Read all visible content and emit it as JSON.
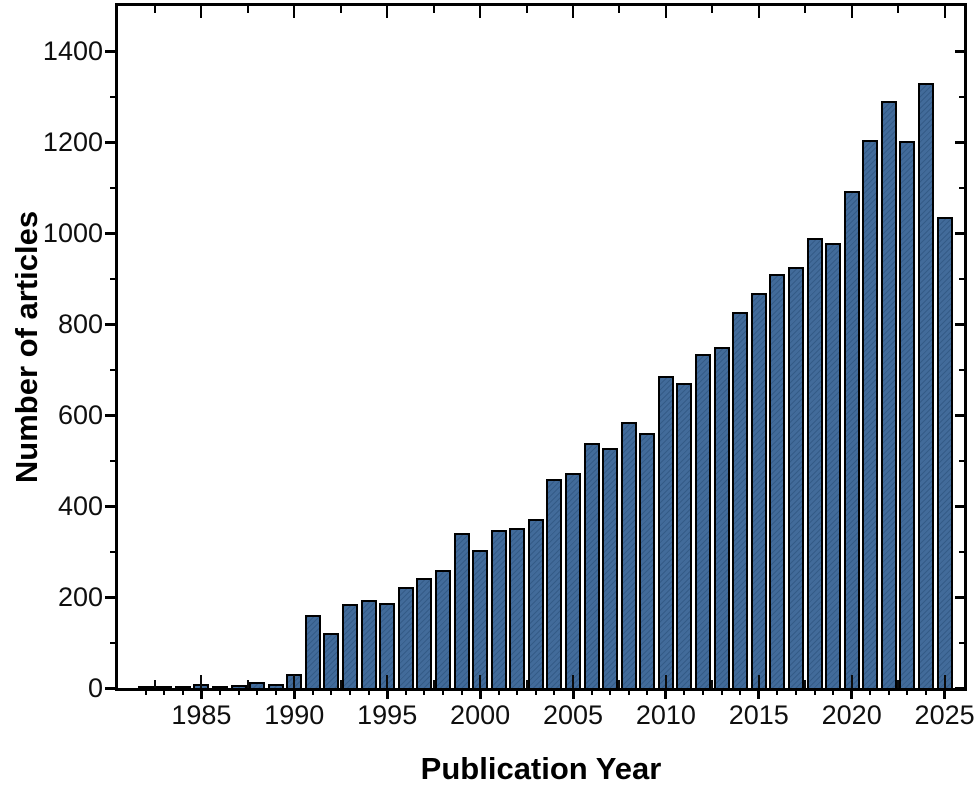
{
  "figure": {
    "background": "#ffffff",
    "frame_color": "#000000",
    "text_color": "#111111"
  },
  "chart_data": {
    "type": "bar",
    "title": "",
    "xlabel": "Publication Year",
    "ylabel": "Number of articles",
    "x": [
      1982,
      1983,
      1984,
      1985,
      1986,
      1987,
      1988,
      1989,
      1990,
      1991,
      1992,
      1993,
      1994,
      1995,
      1996,
      1997,
      1998,
      1999,
      2000,
      2001,
      2002,
      2003,
      2004,
      2005,
      2006,
      2007,
      2008,
      2009,
      2010,
      2011,
      2012,
      2013,
      2014,
      2015,
      2016,
      2017,
      2018,
      2019,
      2020,
      2021,
      2022,
      2023,
      2024,
      2025
    ],
    "values": [
      3,
      4,
      3,
      8,
      4,
      6,
      13,
      9,
      31,
      160,
      121,
      184,
      193,
      188,
      223,
      243,
      259,
      341,
      303,
      348,
      352,
      372,
      459,
      472,
      538,
      527,
      584,
      561,
      687,
      671,
      734,
      749,
      828,
      868,
      911,
      925,
      989,
      978,
      1093,
      1206,
      1291,
      1203,
      1331,
      1035
    ],
    "ylim": [
      0,
      1500
    ],
    "y_major_ticks": [
      0,
      200,
      400,
      600,
      800,
      1000,
      1200,
      1400
    ],
    "y_minor_ticks": [
      100,
      300,
      500,
      700,
      900,
      1100,
      1300
    ],
    "x_major_tick_labels": [
      1985,
      1990,
      1995,
      2000,
      2005,
      2010,
      2015,
      2020,
      2025
    ],
    "x_minor_tick_step_years": 1,
    "inner_tick_step_years": 2.5,
    "bar_fill": "#3a6596",
    "bar_border": "#000000",
    "grid": false,
    "legend": false,
    "legend_position": "none"
  }
}
